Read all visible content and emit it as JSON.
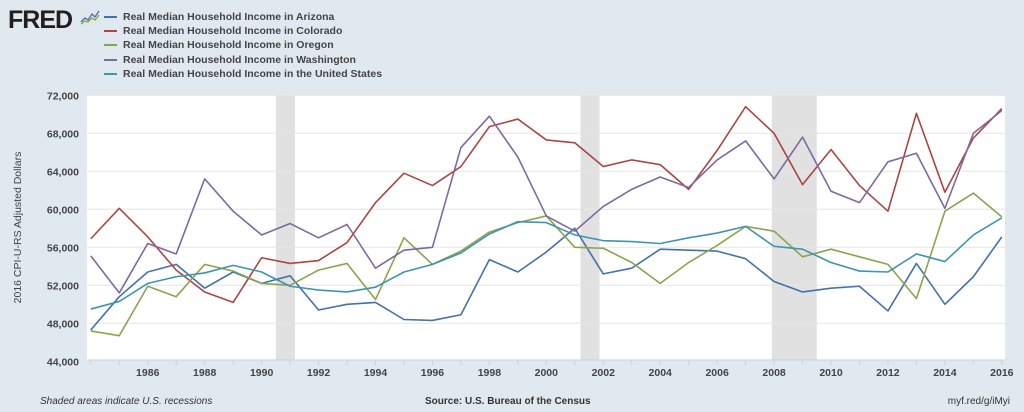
{
  "logo": "FRED",
  "chart_data": {
    "type": "line",
    "title": "",
    "ylabel": "2016 CPI-U-RS Adjusted Dollars",
    "xlabel": "",
    "ylim": [
      44000,
      72000
    ],
    "yticks": [
      "44,000",
      "48,000",
      "52,000",
      "56,000",
      "60,000",
      "64,000",
      "68,000",
      "72,000"
    ],
    "yticks_values": [
      44000,
      48000,
      52000,
      56000,
      60000,
      64000,
      68000,
      72000
    ],
    "xticks": [
      "1986",
      "1988",
      "1990",
      "1992",
      "1994",
      "1996",
      "1998",
      "2000",
      "2002",
      "2004",
      "2006",
      "2008",
      "2010",
      "2012",
      "2014",
      "2016"
    ],
    "xlim": [
      1984,
      2016
    ],
    "grid": true,
    "legend_position": "top-left",
    "recessions": [
      [
        1990.5,
        1991.17
      ],
      [
        2001.2,
        2001.87
      ],
      [
        2007.92,
        2009.5
      ]
    ],
    "x": [
      1984,
      1985,
      1986,
      1987,
      1988,
      1989,
      1990,
      1991,
      1992,
      1993,
      1994,
      1995,
      1996,
      1997,
      1998,
      1999,
      2000,
      2001,
      2002,
      2003,
      2004,
      2005,
      2006,
      2007,
      2008,
      2009,
      2010,
      2011,
      2012,
      2013,
      2014,
      2015,
      2016
    ],
    "series": [
      {
        "name": "Real Median Household Income in Arizona",
        "color": "#4572a7",
        "values": [
          47300,
          50800,
          53400,
          54200,
          51700,
          53400,
          52200,
          53000,
          49400,
          50000,
          50200,
          48400,
          48300,
          48900,
          54700,
          53400,
          55500,
          58000,
          53200,
          53800,
          55800,
          55700,
          55600,
          54800,
          52400,
          51300,
          51700,
          51900,
          49300,
          54300,
          50000,
          52900,
          57100
        ]
      },
      {
        "name": "Real Median Household Income in Colorado",
        "color": "#aa4643",
        "values": [
          56900,
          60100,
          57100,
          53600,
          51300,
          50200,
          54900,
          54300,
          54600,
          56500,
          60700,
          63800,
          62500,
          64500,
          68700,
          69500,
          67300,
          67000,
          64500,
          65200,
          64700,
          62100,
          66200,
          70800,
          68000,
          62600,
          66300,
          62500,
          59800,
          70100,
          61800,
          67500,
          70600
        ]
      },
      {
        "name": "Real Median Household Income in Oregon",
        "color": "#89a54e",
        "values": [
          47200,
          46700,
          51900,
          50800,
          54200,
          53500,
          52200,
          52000,
          53600,
          54300,
          50500,
          57000,
          54200,
          55600,
          57600,
          58600,
          59300,
          56000,
          55900,
          54400,
          52200,
          54400,
          56200,
          58200,
          57700,
          55000,
          55800,
          55000,
          54200,
          50600,
          59800,
          61700,
          59200
        ]
      },
      {
        "name": "Real Median Household Income in Washington",
        "color": "#80699b",
        "values": [
          55100,
          51200,
          56400,
          55300,
          63200,
          59800,
          57300,
          58500,
          57000,
          58400,
          53800,
          55700,
          56000,
          66500,
          69800,
          65500,
          59300,
          57700,
          60300,
          62100,
          63400,
          62300,
          65200,
          67200,
          63200,
          67600,
          61900,
          60700,
          65000,
          65900,
          60100,
          68000,
          70400
        ]
      },
      {
        "name": "Real Median Household Income in the United States",
        "color": "#3d96ae",
        "values": [
          49500,
          50300,
          52200,
          52900,
          53300,
          54100,
          53400,
          51900,
          51500,
          51300,
          51800,
          53400,
          54200,
          55400,
          57400,
          58700,
          58600,
          57300,
          56700,
          56600,
          56400,
          57000,
          57500,
          58200,
          56100,
          55800,
          54400,
          53500,
          53400,
          55300,
          54500,
          57300,
          59100
        ]
      }
    ]
  },
  "footer": {
    "recession_note": "Shaded areas indicate U.S. recessions",
    "source": "Source: U.S. Bureau of the Census",
    "short_url": "myf.red/g/iMyi"
  }
}
